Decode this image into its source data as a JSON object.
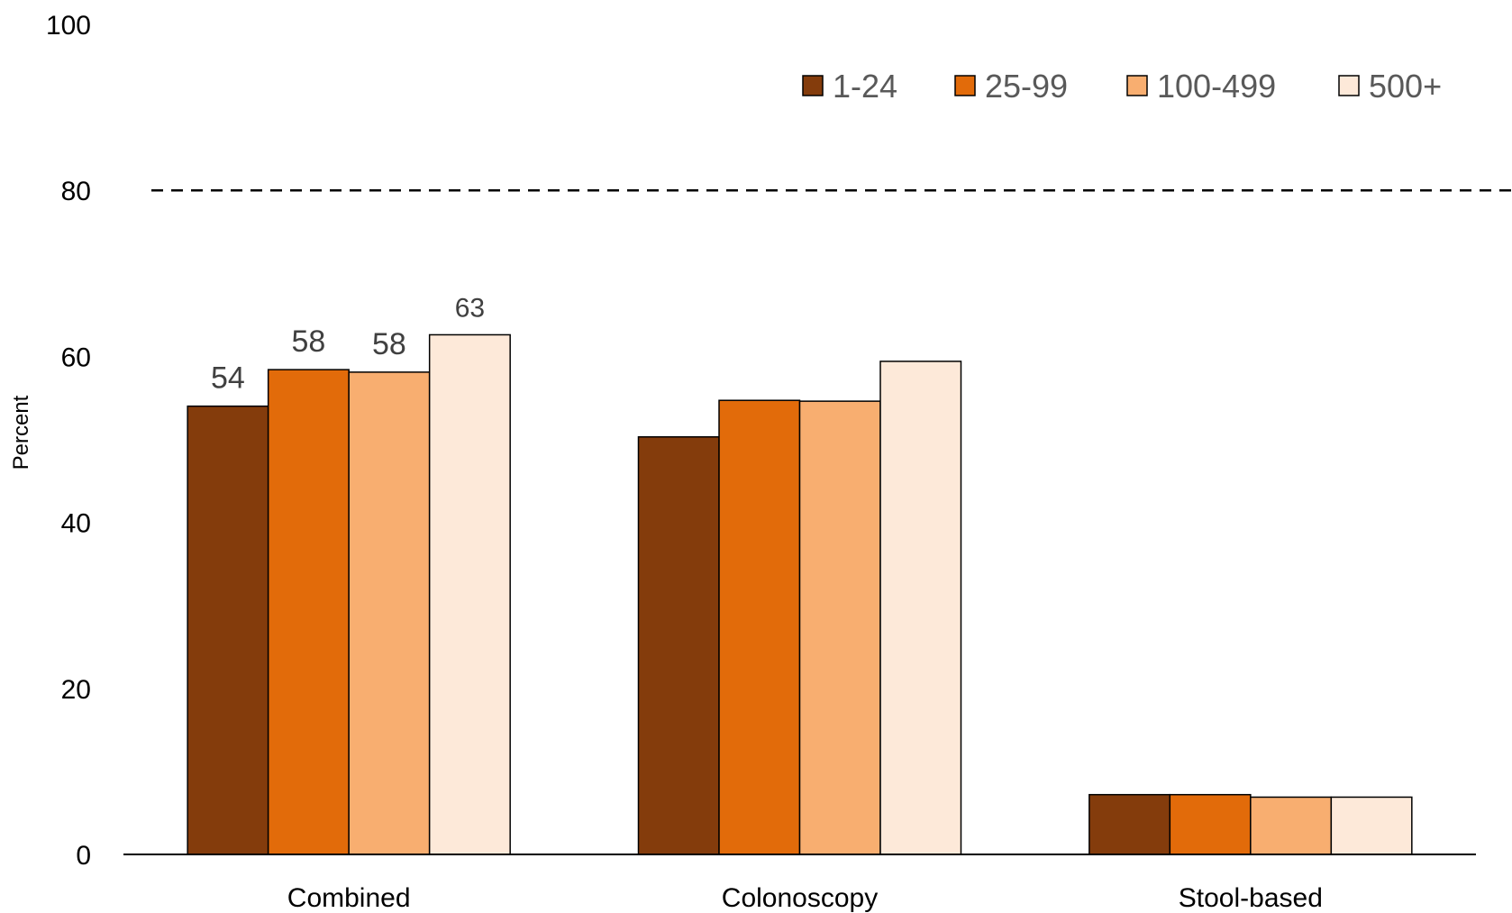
{
  "chart_data": {
    "type": "bar",
    "title": "",
    "xlabel": "",
    "ylabel": "Percent",
    "ylim": [
      0,
      100
    ],
    "y_ticks": [
      "0",
      "20",
      "40",
      "60",
      "80",
      "100"
    ],
    "grid": false,
    "reference_line": {
      "value": 80,
      "style": "dashed"
    },
    "legend_position": "top-right",
    "categories": [
      "Combined",
      "Colonoscopy",
      "Stool-based"
    ],
    "series": [
      {
        "name": "1-24",
        "color": "#843C0C",
        "values": [
          54,
          50.3,
          7.2
        ],
        "labels": [
          "54",
          "",
          ""
        ]
      },
      {
        "name": "25-99",
        "color": "#E26B0A",
        "values": [
          58.4,
          54.7,
          7.2
        ],
        "labels": [
          "58",
          "",
          ""
        ]
      },
      {
        "name": "100-499",
        "color": "#F8AE70",
        "values": [
          58.1,
          54.6,
          6.9
        ],
        "labels": [
          "58",
          "",
          ""
        ]
      },
      {
        "name": "500+",
        "color": "#FDE9D9",
        "values": [
          62.6,
          59.4,
          6.9
        ],
        "labels": [
          "63",
          "",
          ""
        ]
      }
    ]
  }
}
